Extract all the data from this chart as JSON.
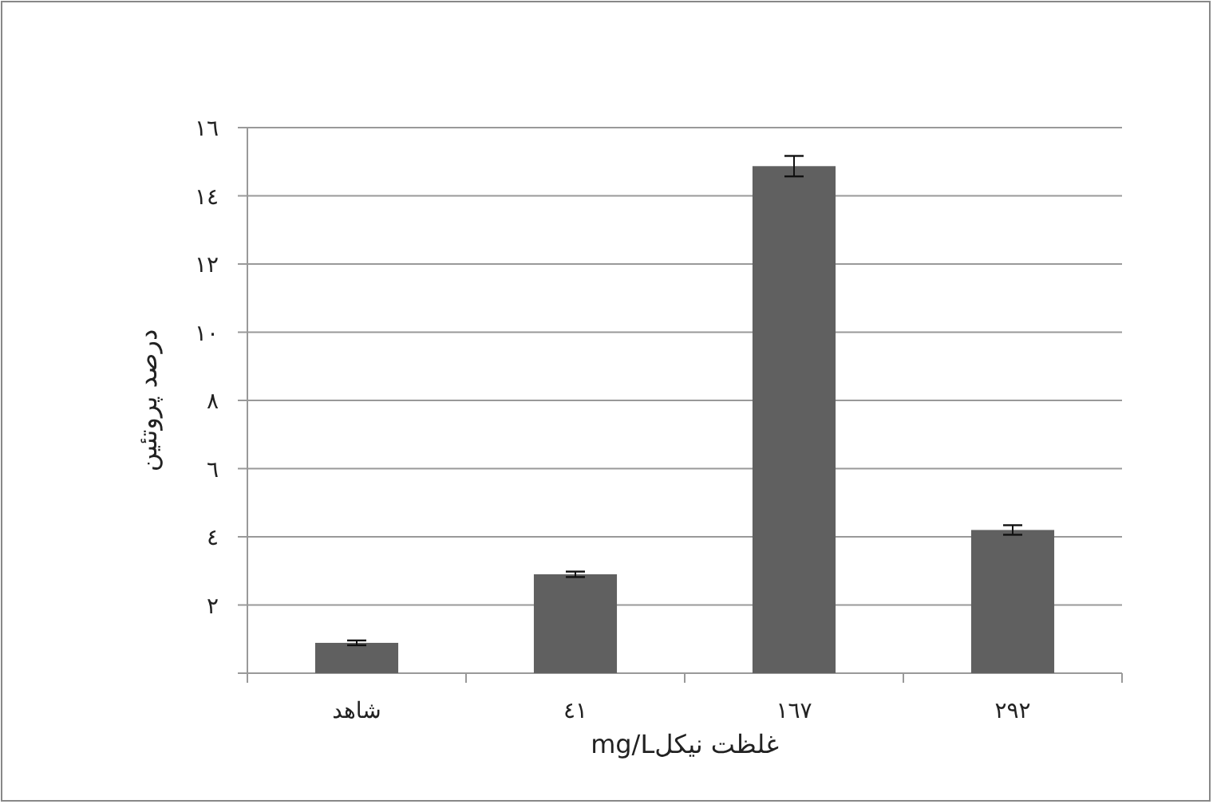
{
  "chart_data": {
    "type": "bar",
    "xlabel": "غلظت نیکلmg/L",
    "ylabel": "درصد پروتئین",
    "categories": [
      "شاهد",
      "٤١",
      "١٦٧",
      "٢٩٢"
    ],
    "values": [
      0.89,
      2.9,
      14.87,
      4.2
    ],
    "errors": [
      0.07,
      0.08,
      0.3,
      0.14
    ],
    "color": "#606060",
    "ylim": [
      0,
      16
    ],
    "yticks": [
      {
        "value": 0,
        "label": null
      },
      {
        "value": 2,
        "label": "٢"
      },
      {
        "value": 4,
        "label": "٤"
      },
      {
        "value": 6,
        "label": "٦"
      },
      {
        "value": 8,
        "label": "٨"
      },
      {
        "value": 10,
        "label": "١٠"
      },
      {
        "value": 12,
        "label": "١٢"
      },
      {
        "value": 14,
        "label": "١٤"
      },
      {
        "value": 16,
        "label": "١٦"
      }
    ],
    "grid": "y"
  }
}
